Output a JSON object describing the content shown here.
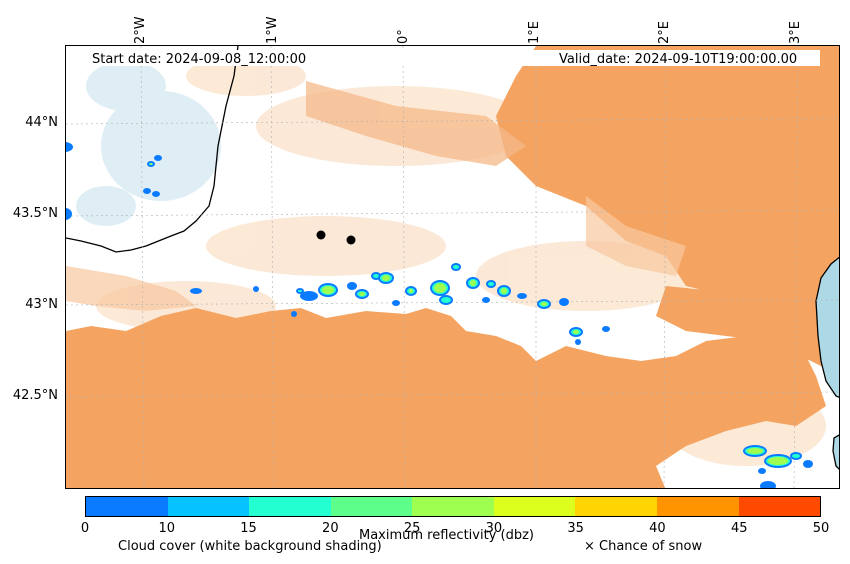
{
  "header": {
    "start_date": "Start date: 2024-09-08_12:00:00",
    "valid_date": "Valid_date: 2024-09-10T19:00:00.00"
  },
  "axes": {
    "lon_ticks": [
      "2°W",
      "1°W",
      "0°",
      "1°E",
      "2°E",
      "3°E"
    ],
    "lat_ticks": [
      "44°N",
      "43.5°N",
      "43°N",
      "42.5°N"
    ]
  },
  "colorbar": {
    "title": "Maximum reflectivity (dbz)",
    "ticks": [
      "0",
      "10",
      "15",
      "20",
      "25",
      "30",
      "35",
      "40",
      "45",
      "50"
    ],
    "colors": [
      "#0a7bff",
      "#06c3ff",
      "#23ffd0",
      "#5dff8a",
      "#9fff50",
      "#dcff1e",
      "#ffd400",
      "#ff9400",
      "#ff4a00"
    ]
  },
  "legend": {
    "cloud_cover": "Cloud cover (white background shading)",
    "snow": "× Chance of snow"
  },
  "map_colors": {
    "cloud_fill": "#f4a460",
    "sea": "#add8e6",
    "land": "#ffffff"
  }
}
